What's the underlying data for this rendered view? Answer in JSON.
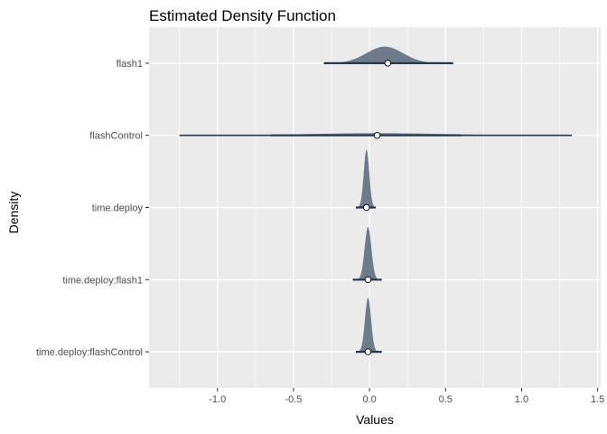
{
  "chart_data": {
    "type": "density_ridges",
    "title": "Estimated Density Function",
    "xlabel": "Values",
    "ylabel": "Density",
    "xlim": [
      -1.45,
      1.52
    ],
    "x_ticks": [
      -1.0,
      -0.5,
      0.0,
      0.5,
      1.0,
      1.5
    ],
    "x_tick_labels": [
      "-1.0",
      "-0.5",
      "0.0",
      "0.5",
      "1.0",
      "1.5"
    ],
    "grid": true,
    "legend": "none",
    "fill_color": "#6e7b8b",
    "line_color": "#27384e",
    "point_fill": "#ffffff",
    "series": [
      {
        "name": "flash1",
        "point": 0.12,
        "inner_interval": [
          -0.3,
          0.55
        ],
        "outer_interval": [
          -0.3,
          0.55
        ],
        "density": {
          "mean": 0.1,
          "sd": 0.12,
          "height": 0.23
        }
      },
      {
        "name": "flashControl",
        "point": 0.05,
        "inner_interval": [
          -0.65,
          0.6
        ],
        "outer_interval": [
          -1.25,
          1.33
        ],
        "density": {
          "mean": 0.05,
          "sd": 0.45,
          "height": 0.03
        }
      },
      {
        "name": "time.deploy",
        "point": -0.02,
        "inner_interval": [
          -0.09,
          0.04
        ],
        "outer_interval": [
          -0.09,
          0.04
        ],
        "density": {
          "mean": -0.02,
          "sd": 0.018,
          "height": 0.8
        }
      },
      {
        "name": "time.deploy:flash1",
        "point": -0.01,
        "inner_interval": [
          -0.11,
          0.08
        ],
        "outer_interval": [
          -0.11,
          0.08
        ],
        "density": {
          "mean": -0.01,
          "sd": 0.022,
          "height": 0.73
        }
      },
      {
        "name": "time.deploy:flashControl",
        "point": -0.01,
        "inner_interval": [
          -0.09,
          0.08
        ],
        "outer_interval": [
          -0.09,
          0.08
        ],
        "density": {
          "mean": -0.01,
          "sd": 0.02,
          "height": 0.75
        }
      }
    ]
  }
}
